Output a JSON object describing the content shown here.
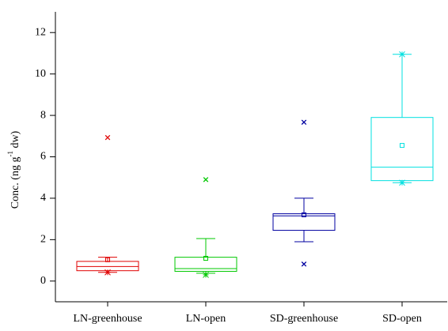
{
  "chart_data": {
    "type": "box",
    "y_label": [
      "Conc. (ng g",
      "-1",
      " dw)"
    ],
    "categories": [
      "LN-greenhouse",
      "LN-open",
      "SD-greenhouse",
      "SD-open"
    ],
    "boxes": [
      {
        "color": "#e00000",
        "whisker_low": 0.42,
        "q1": 0.5,
        "median": 0.7,
        "q3": 0.95,
        "whisker_high": 1.15,
        "mean": 1.03,
        "outliers": [
          6.93
        ],
        "extremes": [
          0.42
        ]
      },
      {
        "color": "#00c800",
        "whisker_low": 0.38,
        "q1": 0.47,
        "median": 0.6,
        "q3": 1.15,
        "whisker_high": 2.05,
        "mean": 1.1,
        "outliers": [
          4.9
        ],
        "extremes": [
          0.3
        ]
      },
      {
        "color": "#0000a0",
        "whisker_low": 1.9,
        "q1": 2.45,
        "median": 3.15,
        "q3": 3.25,
        "whisker_high": 4.0,
        "mean": 3.2,
        "outliers": [
          7.67,
          0.82
        ],
        "extremes": []
      },
      {
        "color": "#00e0e0",
        "whisker_low": 4.75,
        "q1": 4.85,
        "median": 5.5,
        "q3": 7.9,
        "whisker_high": 10.95,
        "mean": 6.55,
        "outliers": [],
        "extremes": [
          10.95,
          4.75
        ]
      }
    ],
    "ylim": [
      -1,
      13
    ],
    "yticks": [
      0,
      2,
      4,
      6,
      8,
      10,
      12
    ],
    "grid": false
  }
}
